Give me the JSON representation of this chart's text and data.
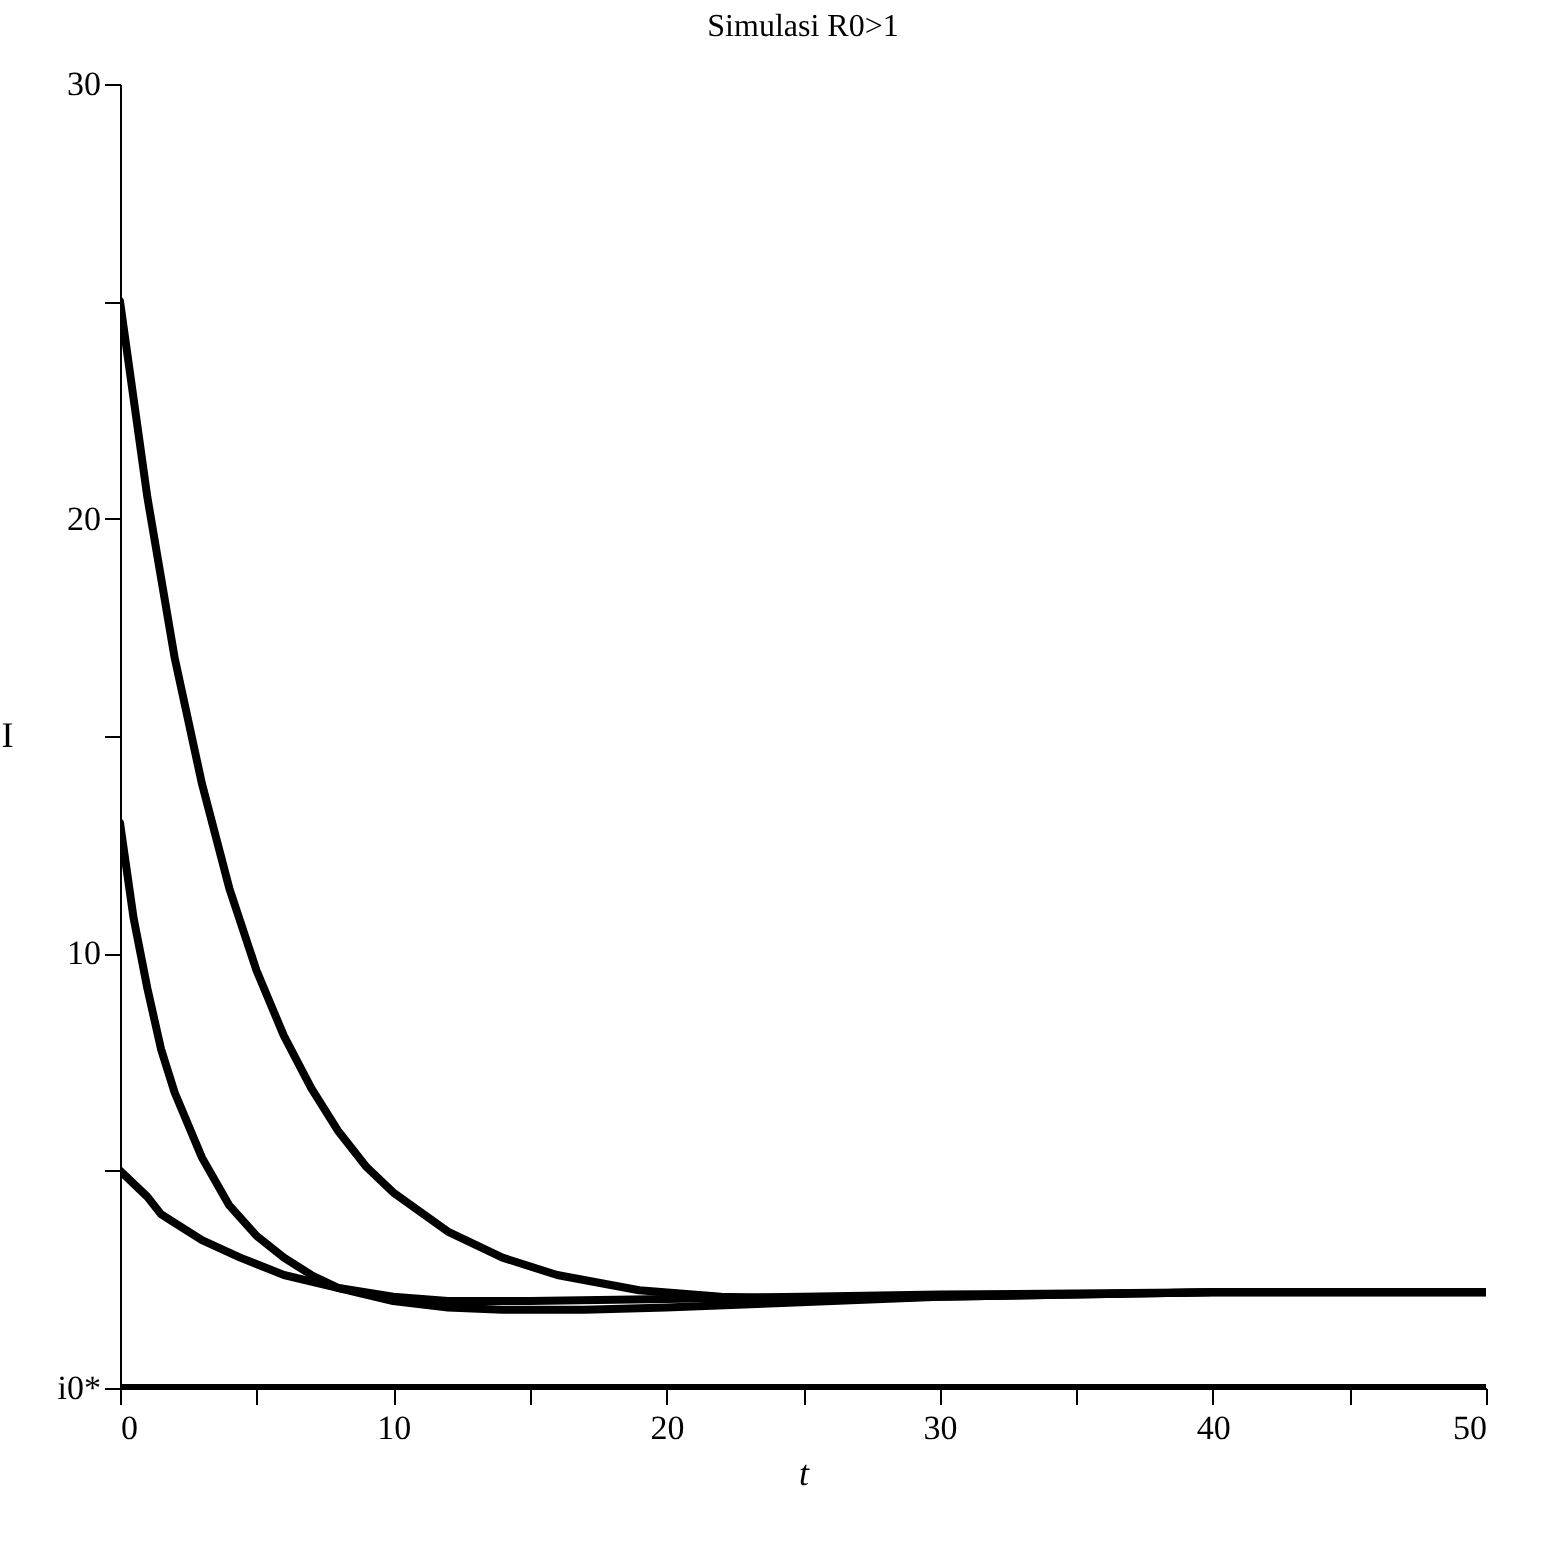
{
  "chart_data": {
    "type": "line",
    "title": "Simulasi R0>1",
    "xlabel": "t",
    "ylabel": "I",
    "xlim": [
      0,
      50
    ],
    "ylim": [
      0,
      30
    ],
    "xticks": [
      0,
      {
        "value": 5,
        "label": null
      },
      10,
      {
        "value": 15,
        "label": null
      },
      20,
      {
        "value": 25,
        "label": null
      },
      30,
      {
        "value": 35,
        "label": null
      },
      40,
      {
        "value": 45,
        "label": null
      },
      50
    ],
    "yticks": [
      {
        "value": 0,
        "label": "i0*"
      },
      {
        "value": 5,
        "label": null
      },
      10,
      {
        "value": 15,
        "label": null
      },
      20,
      {
        "value": 25,
        "label": null
      },
      30
    ],
    "grid": false,
    "legend": false,
    "marker": "none",
    "line_style": "solid",
    "series": [
      {
        "color": "#000000",
        "x": [
          0,
          1,
          2,
          3,
          4,
          5,
          6,
          7,
          8,
          9,
          10,
          12,
          14,
          16,
          19,
          22,
          25,
          30,
          40,
          50
        ],
        "values": [
          25,
          20.5,
          16.8,
          13.9,
          11.5,
          9.6,
          8.1,
          6.9,
          5.9,
          5.1,
          4.5,
          3.6,
          3.0,
          2.6,
          2.25,
          2.1,
          2.05,
          2.1,
          2.2,
          2.2
        ]
      },
      {
        "color": "#000000",
        "x": [
          0,
          0.5,
          1,
          1.5,
          2,
          3,
          4,
          5,
          6,
          7,
          8,
          10,
          12,
          14,
          17,
          20,
          24,
          30,
          40,
          50
        ],
        "values": [
          13,
          10.8,
          9.2,
          7.8,
          6.8,
          5.3,
          4.2,
          3.5,
          3.0,
          2.6,
          2.3,
          2.0,
          1.85,
          1.8,
          1.8,
          1.85,
          1.95,
          2.1,
          2.2,
          2.2
        ]
      },
      {
        "color": "#000000",
        "x": [
          0,
          1,
          1.5,
          2,
          3,
          4.4,
          6,
          8,
          10,
          12,
          15,
          20,
          25,
          30,
          40,
          50
        ],
        "values": [
          5,
          4.4,
          4.0,
          3.8,
          3.4,
          3.0,
          2.6,
          2.3,
          2.1,
          2.0,
          2.0,
          2.05,
          2.1,
          2.15,
          2.2,
          2.2
        ]
      },
      {
        "color": "#000000",
        "x": [
          0,
          50
        ],
        "values": [
          0,
          0
        ]
      }
    ]
  }
}
